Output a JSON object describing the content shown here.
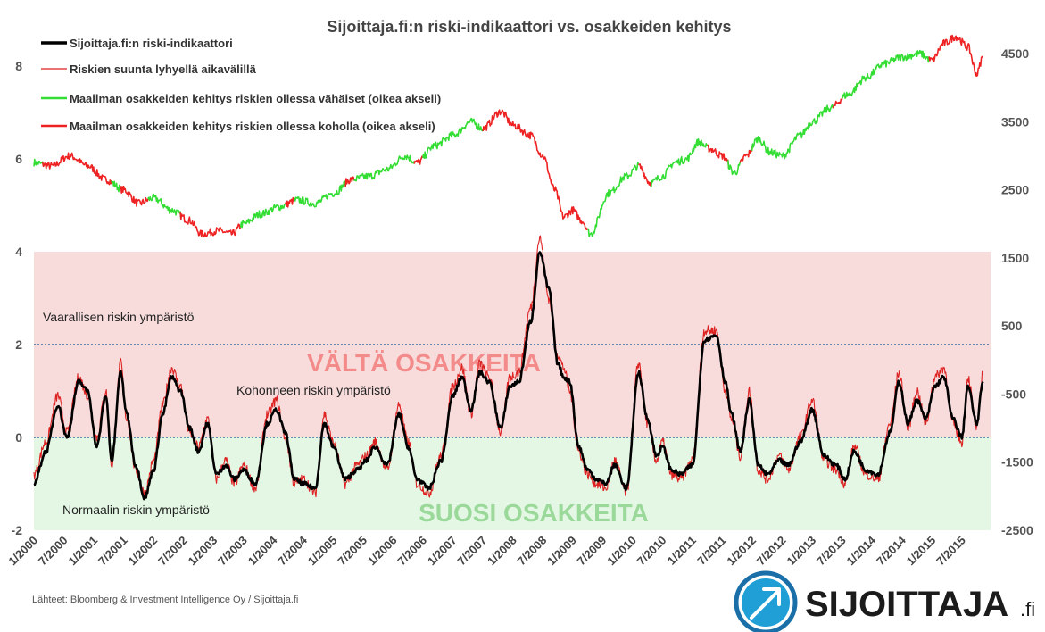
{
  "chart_data": {
    "type": "line",
    "title": "Sijoittaja.fi:n riski-indikaattori vs. osakkeiden kehitys",
    "y_left_ticks": [
      "8",
      "6",
      "4",
      "2",
      "0",
      "-2"
    ],
    "y_right_ticks": [
      "4500",
      "3500",
      "2500",
      "1500",
      "500",
      "-500",
      "-1500",
      "-2500"
    ],
    "ylim_left": [
      -2,
      9
    ],
    "ylim_right": [
      -2500,
      5000
    ],
    "x_tick_labels": [
      "1/2000",
      "7/2000",
      "1/2001",
      "7/2001",
      "1/2002",
      "7/2002",
      "1/2003",
      "7/2003",
      "1/2004",
      "7/2004",
      "1/2005",
      "7/2005",
      "1/2006",
      "7/2006",
      "1/2007",
      "7/2007",
      "1/2008",
      "7/2008",
      "1/2009",
      "7/2009",
      "1/2010",
      "7/2010",
      "1/2011",
      "7/2011",
      "1/2012",
      "7/2012",
      "1/2013",
      "7/2013",
      "1/2014",
      "7/2014",
      "1/2015",
      "7/2015"
    ],
    "legend": [
      {
        "label": "Sijoittaja.fi:n riski-indikaattori",
        "color": "#000000"
      },
      {
        "label": "Riskien suunta lyhyellä aikavälillä",
        "color": "#dd2222"
      },
      {
        "label": "Maailman osakkeiden kehitys riskien ollessa vähäiset (oikea akseli)",
        "color": "#33dd33"
      },
      {
        "label": "Maailman osakkeiden kehitys riskien ollessa koholla (oikea akseli)",
        "color": "#ee2222"
      }
    ],
    "zones": {
      "danger_band": [
        0,
        4
      ],
      "safe_band": [
        -2,
        0
      ],
      "reference_lines": [
        2,
        0
      ]
    },
    "annotations": {
      "dangerous": "Vaarallisen riskin ympäristö",
      "elevated": "Kohonneen riskin ympäristö",
      "normal": "Normaalin riskin ympäristö",
      "avoid": "VÄLTÄ OSAKKEITA",
      "favor": "SUOSI OSAKKEITA"
    },
    "series": [
      {
        "name": "Sijoittaja.fi:n riski-indikaattori",
        "color": "#000000",
        "x": [
          2000.0,
          2000.2,
          2000.4,
          2000.55,
          2000.75,
          2000.9,
          2001.05,
          2001.2,
          2001.3,
          2001.45,
          2001.55,
          2001.7,
          2001.85,
          2002.0,
          2002.15,
          2002.3,
          2002.45,
          2002.6,
          2002.75,
          2002.9,
          2003.05,
          2003.2,
          2003.35,
          2003.5,
          2003.7,
          2003.9,
          2004.05,
          2004.2,
          2004.35,
          2004.5,
          2004.7,
          2004.85,
          2005.0,
          2005.2,
          2005.4,
          2005.55,
          2005.7,
          2005.9,
          2006.1,
          2006.25,
          2006.4,
          2006.6,
          2006.8,
          2007.0,
          2007.15,
          2007.3,
          2007.45,
          2007.6,
          2007.8,
          2007.95,
          2008.1,
          2008.3,
          2008.45,
          2008.6,
          2008.75,
          2008.85,
          2008.95,
          2009.1,
          2009.25,
          2009.4,
          2009.55,
          2009.7,
          2009.9,
          2010.1,
          2010.25,
          2010.4,
          2010.5,
          2010.65,
          2010.8,
          2011.0,
          2011.2,
          2011.4,
          2011.55,
          2011.65,
          2011.8,
          2011.95,
          2012.1,
          2012.25,
          2012.45,
          2012.6,
          2012.8,
          2013.0,
          2013.2,
          2013.4,
          2013.55,
          2013.7,
          2013.9,
          2014.1,
          2014.3,
          2014.45,
          2014.6,
          2014.75,
          2014.9,
          2015.05,
          2015.2,
          2015.35,
          2015.5,
          2015.6,
          2015.75,
          2015.85
        ],
        "y": [
          -1.0,
          -0.3,
          0.7,
          0.0,
          1.2,
          1.0,
          -0.2,
          0.9,
          -0.5,
          1.4,
          0.5,
          -0.6,
          -1.3,
          -0.7,
          0.5,
          1.3,
          1.0,
          0.2,
          -0.3,
          0.3,
          -0.8,
          -0.6,
          -0.9,
          -0.7,
          -1.0,
          0.3,
          0.6,
          0.1,
          -0.9,
          -1.0,
          -1.1,
          0.3,
          -0.2,
          -0.9,
          -0.7,
          -0.5,
          -0.2,
          -0.6,
          0.5,
          -0.2,
          -0.9,
          -1.1,
          -0.5,
          0.9,
          1.3,
          0.6,
          1.4,
          1.2,
          0.2,
          1.1,
          1.2,
          2.5,
          4.0,
          3.2,
          1.6,
          1.3,
          1.2,
          -0.2,
          -0.7,
          -0.9,
          -1.0,
          -0.6,
          -1.1,
          1.4,
          0.4,
          -0.4,
          -0.2,
          -0.7,
          -0.8,
          -0.6,
          2.1,
          2.2,
          1.2,
          0.5,
          -0.3,
          0.8,
          -0.6,
          -0.8,
          -0.5,
          -0.6,
          -0.1,
          0.6,
          -0.4,
          -0.6,
          -0.9,
          -0.3,
          -0.7,
          -0.8,
          0.1,
          1.2,
          0.3,
          0.8,
          0.4,
          1.1,
          1.3,
          0.4,
          0.0,
          1.1,
          0.3,
          1.2
        ]
      },
      {
        "name": "Riskien suunta lyhyellä aikavälillä",
        "color": "#dd2222",
        "x": [
          2000.0,
          2000.2,
          2000.4,
          2000.55,
          2000.75,
          2000.9,
          2001.05,
          2001.2,
          2001.3,
          2001.45,
          2001.55,
          2001.7,
          2001.85,
          2002.0,
          2002.15,
          2002.3,
          2002.45,
          2002.6,
          2002.75,
          2002.9,
          2003.05,
          2003.2,
          2003.35,
          2003.5,
          2003.7,
          2003.9,
          2004.05,
          2004.2,
          2004.35,
          2004.5,
          2004.7,
          2004.85,
          2005.0,
          2005.2,
          2005.4,
          2005.55,
          2005.7,
          2005.9,
          2006.1,
          2006.25,
          2006.4,
          2006.6,
          2006.8,
          2007.0,
          2007.15,
          2007.3,
          2007.45,
          2007.6,
          2007.8,
          2007.95,
          2008.1,
          2008.3,
          2008.45,
          2008.6,
          2008.75,
          2008.85,
          2008.95,
          2009.1,
          2009.25,
          2009.4,
          2009.55,
          2009.7,
          2009.9,
          2010.1,
          2010.25,
          2010.4,
          2010.5,
          2010.65,
          2010.8,
          2011.0,
          2011.2,
          2011.4,
          2011.55,
          2011.65,
          2011.8,
          2011.95,
          2012.1,
          2012.25,
          2012.45,
          2012.6,
          2012.8,
          2013.0,
          2013.2,
          2013.4,
          2013.55,
          2013.7,
          2013.9,
          2014.1,
          2014.3,
          2014.45,
          2014.6,
          2014.75,
          2014.9,
          2015.05,
          2015.2,
          2015.35,
          2015.5,
          2015.6,
          2015.75,
          2015.85
        ],
        "y": [
          -0.8,
          -0.1,
          0.9,
          0.1,
          1.3,
          0.9,
          0.0,
          1.0,
          -0.6,
          1.6,
          0.4,
          -0.7,
          -1.2,
          -0.5,
          0.7,
          1.5,
          1.1,
          0.1,
          -0.2,
          0.4,
          -0.9,
          -0.5,
          -1.0,
          -0.6,
          -1.1,
          0.5,
          0.8,
          0.0,
          -1.0,
          -0.9,
          -1.2,
          0.5,
          -0.1,
          -1.0,
          -0.6,
          -0.4,
          -0.1,
          -0.7,
          0.7,
          -0.1,
          -1.0,
          -1.2,
          -0.4,
          1.1,
          1.5,
          0.5,
          1.6,
          1.3,
          0.1,
          1.3,
          1.4,
          2.8,
          4.3,
          3.0,
          1.8,
          1.5,
          1.0,
          -0.3,
          -0.8,
          -1.0,
          -1.1,
          -0.5,
          -1.2,
          1.6,
          0.3,
          -0.5,
          -0.1,
          -0.8,
          -0.9,
          -0.5,
          2.3,
          2.3,
          1.0,
          0.4,
          -0.4,
          1.0,
          -0.7,
          -0.9,
          -0.4,
          -0.7,
          0.0,
          0.8,
          -0.5,
          -0.7,
          -1.0,
          -0.2,
          -0.8,
          -0.9,
          0.3,
          1.4,
          0.2,
          1.0,
          0.3,
          1.3,
          1.5,
          0.3,
          -0.1,
          1.3,
          0.2,
          1.4
        ]
      },
      {
        "name": "Maailman osakkeiden kehitys (oikea akseli)",
        "axis": "right",
        "x": [
          2000.0,
          2000.3,
          2000.6,
          2000.9,
          2001.2,
          2001.5,
          2001.75,
          2002.0,
          2002.3,
          2002.6,
          2002.8,
          2003.1,
          2003.3,
          2003.5,
          2003.8,
          2004.1,
          2004.4,
          2004.7,
          2005.0,
          2005.3,
          2005.6,
          2005.9,
          2006.2,
          2006.4,
          2006.7,
          2007.0,
          2007.3,
          2007.5,
          2007.8,
          2008.0,
          2008.3,
          2008.5,
          2008.7,
          2008.85,
          2009.0,
          2009.15,
          2009.3,
          2009.6,
          2009.9,
          2010.1,
          2010.3,
          2010.5,
          2010.7,
          2010.9,
          2011.1,
          2011.3,
          2011.5,
          2011.7,
          2011.9,
          2012.1,
          2012.3,
          2012.5,
          2012.8,
          2013.0,
          2013.3,
          2013.6,
          2013.9,
          2014.2,
          2014.5,
          2014.8,
          2015.0,
          2015.2,
          2015.4,
          2015.6,
          2015.75,
          2015.85
        ],
        "y": [
          2900,
          2850,
          3000,
          2850,
          2650,
          2500,
          2300,
          2380,
          2200,
          2050,
          1850,
          1900,
          1850,
          2000,
          2150,
          2250,
          2350,
          2300,
          2450,
          2650,
          2700,
          2800,
          3000,
          2900,
          3150,
          3300,
          3500,
          3400,
          3650,
          3450,
          3300,
          3000,
          2500,
          2100,
          2200,
          2050,
          1850,
          2450,
          2700,
          2850,
          2600,
          2700,
          2900,
          2950,
          3200,
          3100,
          3000,
          2750,
          3000,
          3250,
          3050,
          3000,
          3300,
          3500,
          3700,
          3900,
          4150,
          4350,
          4450,
          4500,
          4400,
          4650,
          4750,
          4600,
          4200,
          4450
        ],
        "segments": [
          {
            "regime": "low",
            "color": "#33dd33",
            "from": 2000.0,
            "to": 2000.15
          },
          {
            "regime": "high",
            "color": "#ee2222",
            "from": 2000.15,
            "to": 2001.3
          },
          {
            "regime": "low",
            "color": "#33dd33",
            "from": 2001.3,
            "to": 2001.45
          },
          {
            "regime": "high",
            "color": "#ee2222",
            "from": 2001.45,
            "to": 2001.9
          },
          {
            "regime": "low",
            "color": "#33dd33",
            "from": 2001.9,
            "to": 2002.45
          },
          {
            "regime": "high",
            "color": "#ee2222",
            "from": 2002.45,
            "to": 2003.45
          },
          {
            "regime": "low",
            "color": "#33dd33",
            "from": 2003.45,
            "to": 2004.2
          },
          {
            "regime": "high",
            "color": "#ee2222",
            "from": 2004.2,
            "to": 2004.35
          },
          {
            "regime": "low",
            "color": "#33dd33",
            "from": 2004.35,
            "to": 2005.2
          },
          {
            "regime": "high",
            "color": "#ee2222",
            "from": 2005.2,
            "to": 2005.35
          },
          {
            "regime": "low",
            "color": "#33dd33",
            "from": 2005.35,
            "to": 2006.35
          },
          {
            "regime": "high",
            "color": "#ee2222",
            "from": 2006.35,
            "to": 2006.5
          },
          {
            "regime": "low",
            "color": "#33dd33",
            "from": 2006.5,
            "to": 2007.5
          },
          {
            "regime": "high",
            "color": "#ee2222",
            "from": 2007.5,
            "to": 2009.25
          },
          {
            "regime": "low",
            "color": "#33dd33",
            "from": 2009.25,
            "to": 2010.1
          },
          {
            "regime": "high",
            "color": "#ee2222",
            "from": 2010.1,
            "to": 2010.3
          },
          {
            "regime": "low",
            "color": "#33dd33",
            "from": 2010.3,
            "to": 2011.25
          },
          {
            "regime": "high",
            "color": "#ee2222",
            "from": 2011.25,
            "to": 2011.6
          },
          {
            "regime": "low",
            "color": "#33dd33",
            "from": 2011.6,
            "to": 2011.8
          },
          {
            "regime": "high",
            "color": "#ee2222",
            "from": 2011.8,
            "to": 2012.0
          },
          {
            "regime": "low",
            "color": "#33dd33",
            "from": 2012.0,
            "to": 2013.35
          },
          {
            "regime": "high",
            "color": "#ee2222",
            "from": 2013.35,
            "to": 2013.5
          },
          {
            "regime": "low",
            "color": "#33dd33",
            "from": 2013.5,
            "to": 2014.95
          },
          {
            "regime": "high",
            "color": "#ee2222",
            "from": 2014.95,
            "to": 2015.85
          }
        ]
      }
    ]
  },
  "source_text": "Lähteet: Bloomberg & Investment Intelligence Oy / Sijoittaja.fi",
  "logo": {
    "name": "SIJOITTAJA",
    "suffix": ".fi",
    "ring_color": "#1a6fa8",
    "arrow_bg": "#1f9fd6"
  }
}
